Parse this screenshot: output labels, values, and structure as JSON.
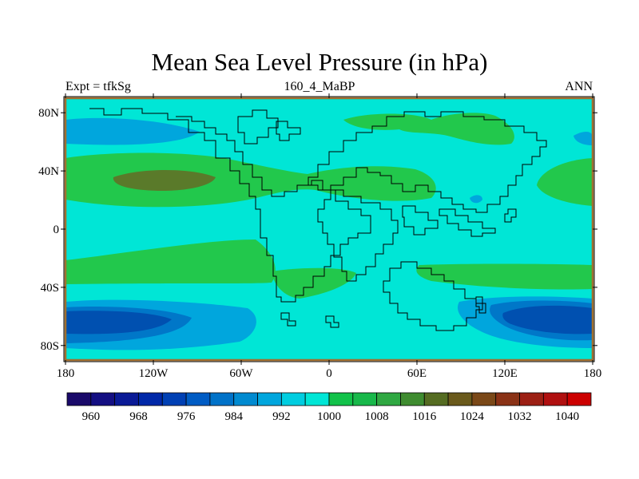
{
  "title": "Mean Sea Level Pressure (in hPa)",
  "subtitle_left": "Expt = tfkSg",
  "subtitle_center": "160_4_MaBP",
  "subtitle_right": "ANN",
  "colors": {
    "ocean_base": "#00e6d6",
    "band_1000_1008": "#22c84c",
    "band_1012": "#2fa842",
    "band_1016": "#5a7a2a",
    "band_992": "#00a6dd",
    "band_984": "#0077c8",
    "band_976": "#0050b0",
    "land_outline": "#000000",
    "frame_edge": "#a07030"
  },
  "chart_data": {
    "type": "heatmap",
    "title": "Mean Sea Level Pressure (in hPa)",
    "projection": "cylindrical equidistant",
    "x": {
      "range": [
        -180,
        180
      ],
      "ticks": [
        -180,
        -120,
        -60,
        0,
        60,
        120,
        180
      ],
      "tick_labels": [
        "180",
        "120W",
        "60W",
        "0",
        "60E",
        "120E",
        "180"
      ]
    },
    "y": {
      "range": [
        -90,
        90
      ],
      "ticks": [
        80,
        40,
        0,
        -40,
        -80
      ],
      "tick_labels": [
        "80N",
        "40N",
        "0",
        "40S",
        "80S"
      ]
    },
    "colorbar": {
      "levels": [
        960,
        964,
        968,
        972,
        976,
        980,
        984,
        988,
        992,
        996,
        1000,
        1004,
        1008,
        1012,
        1016,
        1020,
        1024,
        1028,
        1032,
        1036,
        1040
      ],
      "labels": [
        "960",
        "968",
        "976",
        "984",
        "992",
        "1000",
        "1008",
        "1016",
        "1024",
        "1032",
        "1040"
      ],
      "colors": [
        "#1a0a6a",
        "#140f82",
        "#0a1a96",
        "#0028a8",
        "#0040b4",
        "#005cc4",
        "#0072c8",
        "#008ad0",
        "#00a6dd",
        "#00cde0",
        "#00e6d6",
        "#12c24a",
        "#18b84a",
        "#2fa842",
        "#3f8c30",
        "#556c22",
        "#6a5a1c",
        "#7a4818",
        "#8a3216",
        "#9c2014",
        "#b01010",
        "#cc0000"
      ]
    }
  }
}
